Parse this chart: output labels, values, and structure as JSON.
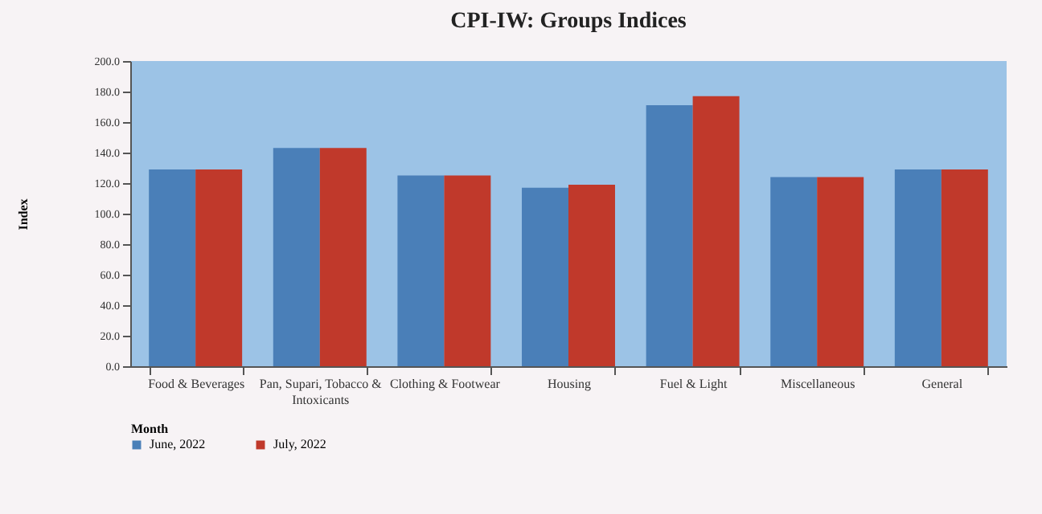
{
  "chart_data": {
    "type": "bar",
    "title": "CPI-IW: Groups Indices",
    "xlabel": "Month",
    "ylabel": "Index",
    "categories": [
      "Food & Beverages",
      "Pan, Supari, Tobacco & Intoxicants",
      "Clothing & Footwear",
      "Housing",
      "Fuel & Light",
      "Miscellaneous",
      "General"
    ],
    "series": [
      {
        "name": "June, 2022",
        "color": "#4a7fb8",
        "values": [
          129,
          143,
          125,
          117,
          171,
          124,
          129
        ]
      },
      {
        "name": "July, 2022",
        "color": "#c0392b",
        "values": [
          129,
          143,
          125,
          119,
          177,
          124,
          129
        ]
      }
    ],
    "ylim": [
      0,
      200
    ],
    "yticks": [
      {
        "value": 0,
        "label": "0.0"
      },
      {
        "value": 20,
        "label": "20.0"
      },
      {
        "value": 40,
        "label": "40.0"
      },
      {
        "value": 60,
        "label": "60.0"
      },
      {
        "value": 80,
        "label": "80.0"
      },
      {
        "value": 100,
        "label": "100.0"
      },
      {
        "value": 120,
        "label": "120.0"
      },
      {
        "value": 140,
        "label": "140.0"
      },
      {
        "value": 160,
        "label": "160.0"
      },
      {
        "value": 180,
        "label": "180.0"
      },
      {
        "value": 200,
        "label": "200.0"
      }
    ],
    "grid": false,
    "legend": "bottom"
  }
}
